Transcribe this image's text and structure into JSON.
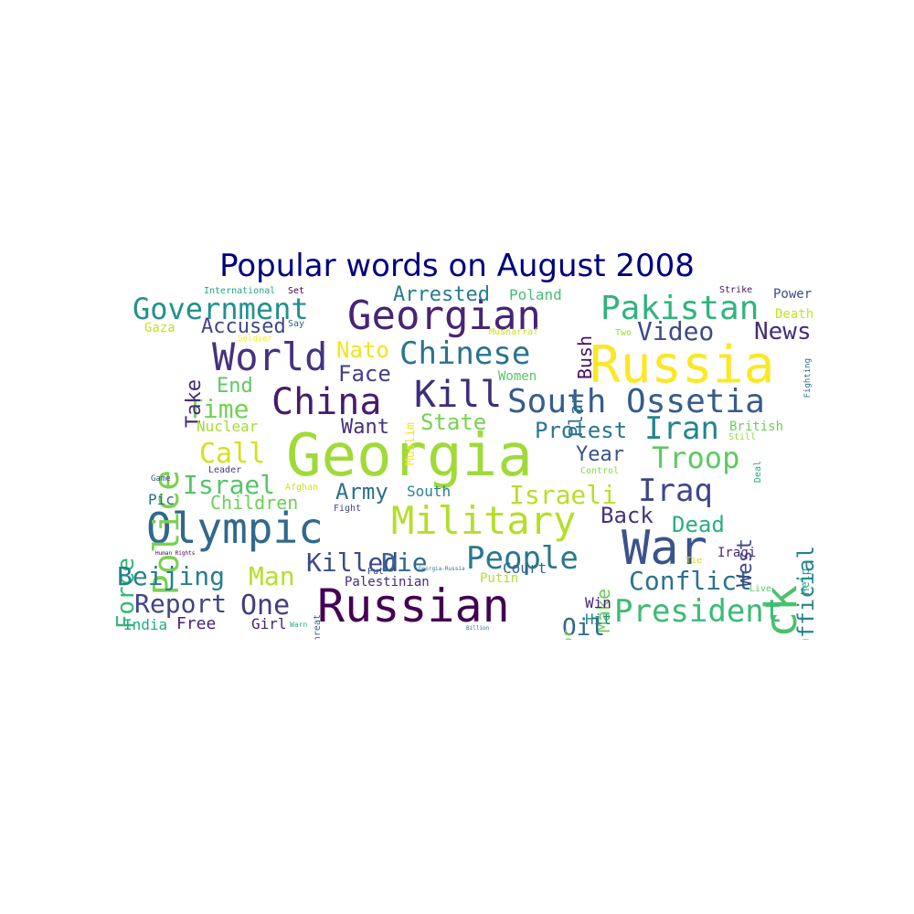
{
  "title": "Popular words on August 2008",
  "palette": {
    "title": "#000080",
    "background": "#ffffff"
  },
  "words": [
    {
      "text": "Georgia",
      "color": "#a0da39"
    },
    {
      "text": "Russia",
      "color": "#fde725"
    },
    {
      "text": "Russian",
      "color": "#440154"
    },
    {
      "text": "War",
      "color": "#3b528b"
    },
    {
      "text": "Olympic",
      "color": "#31688e"
    },
    {
      "text": "Military",
      "color": "#b5de2b"
    },
    {
      "text": "Georgian",
      "color": "#482475"
    },
    {
      "text": "World",
      "color": "#46327e"
    },
    {
      "text": "China",
      "color": "#481a6c"
    },
    {
      "text": "South Ossetia",
      "color": "#365c8d"
    },
    {
      "text": "Attack",
      "color": "#4ac16d"
    },
    {
      "text": "Pakistan",
      "color": "#2fb47c"
    },
    {
      "text": "Kill",
      "color": "#3f2d7c"
    },
    {
      "text": "Chinese",
      "color": "#2c728e"
    },
    {
      "text": "Government",
      "color": "#21918c"
    },
    {
      "text": "Police",
      "color": "#7ad151"
    },
    {
      "text": "American Force",
      "color": "#35b779"
    },
    {
      "text": "People",
      "color": "#2a788e"
    },
    {
      "text": "President",
      "color": "#3bbb75"
    },
    {
      "text": "Troop",
      "color": "#5ec962"
    },
    {
      "text": "Iraq",
      "color": "#404688"
    },
    {
      "text": "Iran",
      "color": "#25858e"
    },
    {
      "text": "Israeli",
      "color": "#b8de29"
    },
    {
      "text": "Video",
      "color": "#3e4989"
    },
    {
      "text": "News",
      "color": "#472d7b"
    },
    {
      "text": "Beijing",
      "color": "#277f8e"
    },
    {
      "text": "Report",
      "color": "#414487"
    },
    {
      "text": "One",
      "color": "#443a83"
    },
    {
      "text": "Man",
      "color": "#b5de2b"
    },
    {
      "text": "Killed",
      "color": "#3e4a89"
    },
    {
      "text": "Die",
      "color": "#31688e"
    },
    {
      "text": "Conflict",
      "color": "#2c728e"
    },
    {
      "text": "Official",
      "color": "#26828e"
    },
    {
      "text": "Israel",
      "color": "#54c568"
    },
    {
      "text": "Call",
      "color": "#d2e21b"
    },
    {
      "text": "Time",
      "color": "#75d054"
    },
    {
      "text": "Army",
      "color": "#2d708e"
    },
    {
      "text": "Arrested",
      "color": "#287c8e"
    },
    {
      "text": "Accused",
      "color": "#3f4788"
    },
    {
      "text": "Nato",
      "color": "#f1e51d"
    },
    {
      "text": "Face",
      "color": "#433e85"
    },
    {
      "text": "End",
      "color": "#5ec962"
    },
    {
      "text": "Take",
      "color": "#482878"
    },
    {
      "text": "Bush",
      "color": "#471063"
    },
    {
      "text": "Plan",
      "color": "#2f6c8e"
    },
    {
      "text": "State",
      "color": "#7ad151"
    },
    {
      "text": "Protest",
      "color": "#2a788e"
    },
    {
      "text": "Want",
      "color": "#46307e"
    },
    {
      "text": "Year",
      "color": "#3b528b"
    },
    {
      "text": "Back",
      "color": "#46327e"
    },
    {
      "text": "Dead",
      "color": "#29af7f"
    },
    {
      "text": "West",
      "color": "#3e4a89"
    },
    {
      "text": "Make",
      "color": "#6ccd5a"
    },
    {
      "text": "Oil",
      "color": "#31688e"
    },
    {
      "text": "Terror",
      "color": "#7fd34e"
    },
    {
      "text": "Children",
      "color": "#6ece58"
    },
    {
      "text": "Free",
      "color": "#482475"
    },
    {
      "text": "India",
      "color": "#22a884"
    },
    {
      "text": "Girl",
      "color": "#482173"
    },
    {
      "text": "Court",
      "color": "#33638d"
    },
    {
      "text": "Putin",
      "color": "#b5de2b"
    },
    {
      "text": "Palestinian",
      "color": "#482878"
    },
    {
      "text": "Poland",
      "color": "#46c06f"
    },
    {
      "text": "Women",
      "color": "#54c568"
    },
    {
      "text": "Muslim",
      "color": "#f1e51d"
    },
    {
      "text": "Musharraf",
      "color": "#c8e020"
    },
    {
      "text": "Nuclear",
      "color": "#a5db36"
    },
    {
      "text": "Leader",
      "color": "#443983"
    },
    {
      "text": "Afghan",
      "color": "#d2e21b"
    },
    {
      "text": "Game",
      "color": "#3b528b"
    },
    {
      "text": "Pic",
      "color": "#2d708e"
    },
    {
      "text": "Fight",
      "color": "#404688"
    },
    {
      "text": "Human Rights",
      "color": "#440154"
    },
    {
      "text": "Threat",
      "color": "#355f8d"
    },
    {
      "text": "Warn",
      "color": "#29af7f"
    },
    {
      "text": "Put",
      "color": "#3b528b"
    },
    {
      "text": "Georgia-Russia",
      "color": "#2c728e"
    },
    {
      "text": "Win",
      "color": "#482576"
    },
    {
      "text": "Hit",
      "color": "#23898e"
    },
    {
      "text": "Billion",
      "color": "#2c728e"
    },
    {
      "text": "South",
      "color": "#26828e"
    },
    {
      "text": "International",
      "color": "#20a486"
    },
    {
      "text": "Set",
      "color": "#440154"
    },
    {
      "text": "Say",
      "color": "#33638d"
    },
    {
      "text": "Gaza",
      "color": "#c8e020"
    },
    {
      "text": "Soldier",
      "color": "#fde725"
    },
    {
      "text": "Strike",
      "color": "#471063"
    },
    {
      "text": "Power",
      "color": "#3e4a89"
    },
    {
      "text": "Death",
      "color": "#c8e020"
    },
    {
      "text": "Two",
      "color": "#a0da39"
    },
    {
      "text": "British",
      "color": "#6ece58"
    },
    {
      "text": "Still",
      "color": "#95d840"
    },
    {
      "text": "Fighting",
      "color": "#2c728e"
    },
    {
      "text": "Control",
      "color": "#8bd646"
    },
    {
      "text": "Deal",
      "color": "#20a486"
    },
    {
      "text": "Iraqi",
      "color": "#482878"
    },
    {
      "text": "Tie",
      "color": "#d8e219"
    },
    {
      "text": "Help",
      "color": "#1fa088"
    },
    {
      "text": "Live",
      "color": "#5ec962"
    }
  ]
}
